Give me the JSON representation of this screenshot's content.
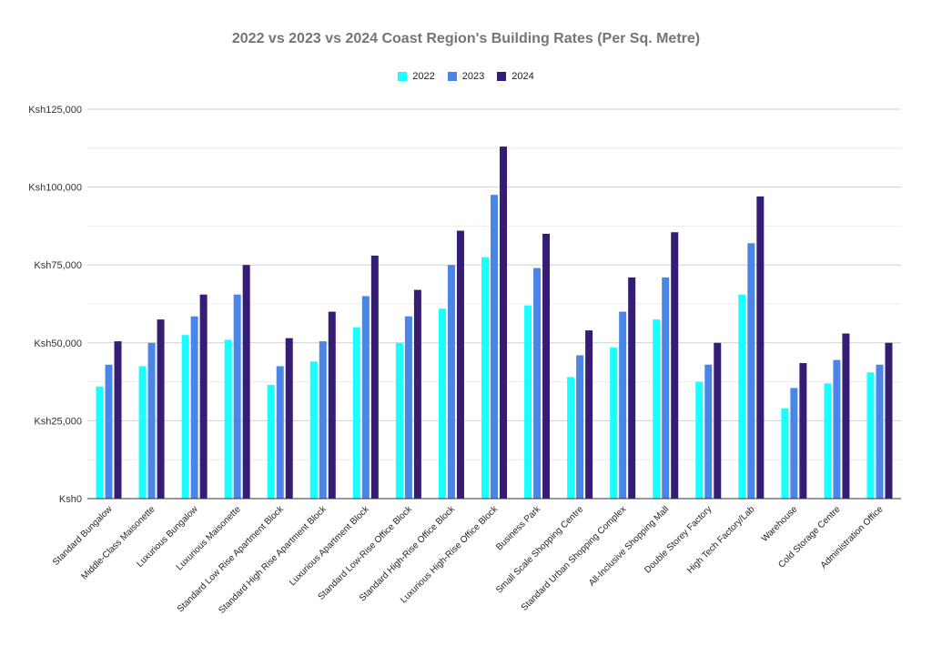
{
  "chart_data": {
    "type": "bar",
    "title": "2022 vs 2023 vs 2024 Coast Region's Building Rates (Per Sq. Metre)",
    "xlabel": "",
    "ylabel": "",
    "ylim": [
      0,
      125000
    ],
    "y_ticks": [
      "Ksh0",
      "Ksh25,000",
      "Ksh50,000",
      "Ksh75,000",
      "Ksh100,000",
      "Ksh125,000"
    ],
    "grid": true,
    "legend_position": "top",
    "categories": [
      "Standard Bungalow",
      "Middle-Class Maisonette",
      "Luxurious Bungalow",
      "Luxurious Maisonette",
      "Standard Low Rise Apartment Block",
      "Standard High Rise Apartment Block",
      "Luxurious Apartment Block",
      "Standard Low-Rise Office Block",
      "Standard High-Rise Office Block",
      "Luxurious High-Rise Office Block",
      "Business Park",
      "Small Scale Shopping Centre",
      "Standard Urban Shopping Complex",
      "All-Inclusive Shopping Mall",
      "Double Storey Factory",
      "High Tech Factory/Lab",
      "Warehouse",
      "Cold Storage Centre",
      "Administration Office"
    ],
    "series": [
      {
        "name": "2022",
        "color": "#19ffff",
        "values": [
          36000,
          42500,
          52500,
          51000,
          36500,
          44000,
          55000,
          50000,
          61000,
          77500,
          62000,
          39000,
          48500,
          57500,
          37500,
          65500,
          29000,
          37000,
          40500
        ]
      },
      {
        "name": "2023",
        "color": "#4a86e8",
        "values": [
          43000,
          50000,
          58500,
          65500,
          42500,
          50500,
          65000,
          58500,
          75000,
          97500,
          74000,
          46000,
          60000,
          71000,
          43000,
          82000,
          35500,
          44500,
          43000
        ]
      },
      {
        "name": "2024",
        "color": "#351c75",
        "values": [
          50500,
          57500,
          65500,
          75000,
          51500,
          60000,
          78000,
          67000,
          86000,
          113000,
          85000,
          54000,
          71000,
          85500,
          50000,
          97000,
          43500,
          53000,
          50000
        ]
      }
    ]
  }
}
